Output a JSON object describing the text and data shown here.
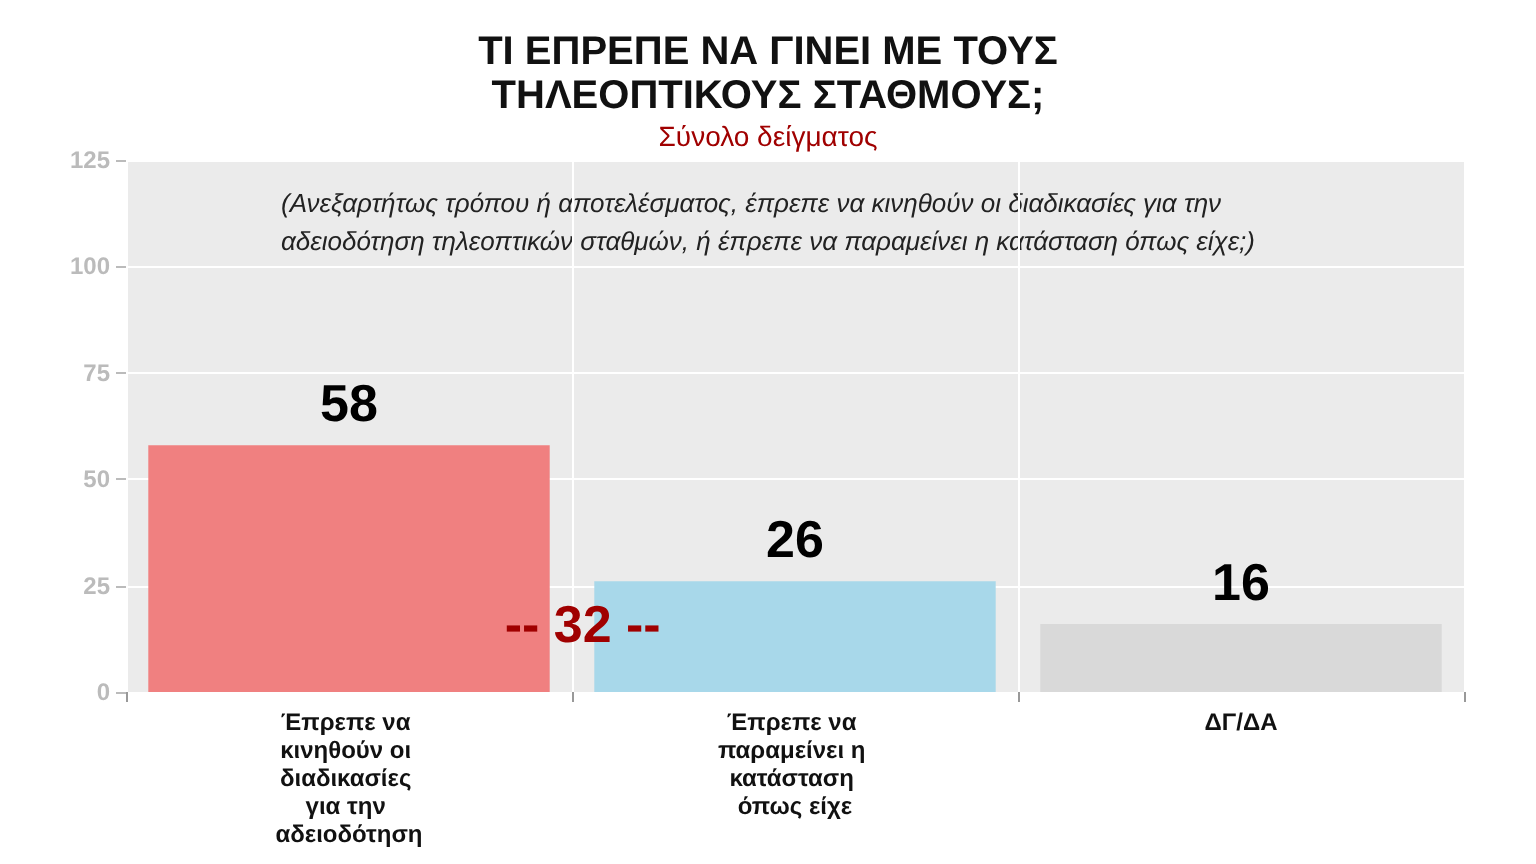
{
  "chart_data": {
    "type": "bar",
    "title": "ΤΙ ΕΠΡΕΠΕ ΝΑ ΓΙΝΕΙ ΜΕ ΤΟΥΣ\nΤΗΛΕΟΠΤΙΚΟΥΣ ΣΤΑΘΜΟΥΣ;",
    "subtitle": "Σύνολο δείγματος",
    "categories": [
      "Έπρεπε να κινηθούν οι διαδικασίες για την αδειοδότηση",
      "Έπρεπε να παραμείνει η κατάσταση όπως είχε",
      "ΔΓ/ΔΑ"
    ],
    "values": [
      58,
      26,
      16
    ],
    "colors": [
      "#f08080",
      "#a8d8ea",
      "#d9d9d9"
    ],
    "ylim": [
      0,
      125
    ],
    "yticks": [
      0,
      25,
      50,
      75,
      100,
      125
    ],
    "grid": true,
    "data_labels": true,
    "annotations": [
      "(Ανεξαρτήτως τρόπου ή αποτελέσματος, έπρεπε να κινηθούν οι διαδικασίες για την\nαδειοδότηση τηλεοπτικών σταθμών, ή έπρεπε να παραμείνει η κατάσταση όπως είχε;)",
      "-- 32 --"
    ]
  }
}
